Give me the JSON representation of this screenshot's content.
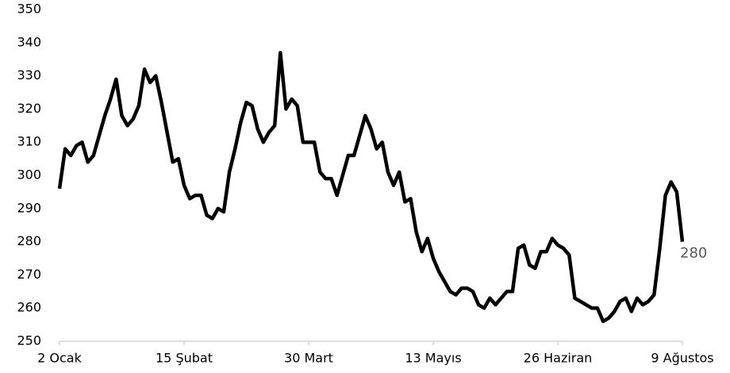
{
  "chart_data": {
    "type": "line",
    "categories": [
      "2 Ocak",
      null,
      null,
      null,
      null,
      null,
      null,
      null,
      null,
      null,
      null,
      null,
      null,
      null,
      null,
      null,
      null,
      null,
      null,
      null,
      null,
      null,
      "15 Şubat",
      null,
      null,
      null,
      null,
      null,
      null,
      null,
      null,
      null,
      null,
      null,
      null,
      null,
      null,
      null,
      null,
      null,
      null,
      null,
      null,
      null,
      "30 Mart",
      null,
      null,
      null,
      null,
      null,
      null,
      null,
      null,
      null,
      null,
      null,
      null,
      null,
      null,
      null,
      null,
      null,
      null,
      null,
      null,
      null,
      "13 Mayıs",
      null,
      null,
      null,
      null,
      null,
      null,
      null,
      null,
      null,
      null,
      null,
      null,
      null,
      null,
      null,
      null,
      null,
      null,
      null,
      null,
      null,
      "26 Haziran",
      null,
      null,
      null,
      null,
      null,
      null,
      null,
      null,
      null,
      null,
      null,
      null,
      null,
      null,
      null,
      null,
      null,
      null,
      null,
      null,
      null,
      "9 Ağustos"
    ],
    "values": [
      296,
      308,
      306,
      309,
      310,
      304,
      306,
      312,
      318,
      323,
      329,
      318,
      315,
      317,
      321,
      332,
      328,
      330,
      322,
      313,
      304,
      305,
      297,
      293,
      294,
      294,
      288,
      287,
      290,
      289,
      301,
      308,
      316,
      322,
      321,
      314,
      310,
      313,
      315,
      337,
      320,
      323,
      321,
      310,
      310,
      310,
      301,
      299,
      299,
      294,
      300,
      306,
      306,
      312,
      318,
      314,
      308,
      310,
      301,
      297,
      301,
      292,
      293,
      283,
      277,
      281,
      275,
      271,
      268,
      265,
      264,
      266,
      266,
      265,
      261,
      260,
      263,
      261,
      263,
      265,
      265,
      278,
      279,
      273,
      272,
      277,
      277,
      281,
      279,
      278,
      276,
      263,
      262,
      261,
      260,
      260,
      256,
      257,
      259,
      262,
      263,
      259,
      263,
      261,
      262,
      264,
      278,
      294,
      298,
      295,
      280
    ],
    "color": "#000000",
    "ylim": [
      250,
      350
    ],
    "yticks": [
      250,
      260,
      270,
      280,
      290,
      300,
      310,
      320,
      330,
      340,
      350
    ],
    "grid": false
  }
}
